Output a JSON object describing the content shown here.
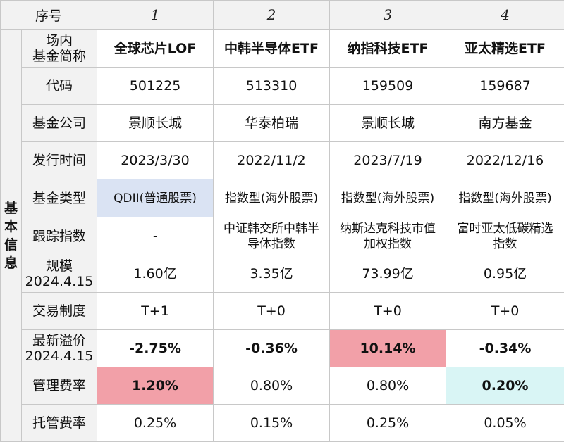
{
  "header": {
    "index_label": "序号",
    "indices": [
      "1",
      "2",
      "3",
      "4"
    ]
  },
  "section": {
    "chars": [
      "基",
      "本",
      "信",
      "息"
    ]
  },
  "rows": {
    "name": {
      "label_lines": [
        "场内",
        "基金简称"
      ],
      "values": [
        "全球芯片LOF",
        "中韩半导体ETF",
        "纳指科技ETF",
        "亚太精选ETF"
      ]
    },
    "code": {
      "label": "代码",
      "values": [
        "501225",
        "513310",
        "159509",
        "159687"
      ]
    },
    "company": {
      "label": "基金公司",
      "values": [
        "景顺长城",
        "华泰柏瑞",
        "景顺长城",
        "南方基金"
      ]
    },
    "issue_date": {
      "label": "发行时间",
      "values": [
        "2023/3/30",
        "2022/11/2",
        "2023/7/19",
        "2022/12/16"
      ]
    },
    "fund_type": {
      "label": "基金类型",
      "values": [
        "QDII(普通股票)",
        "指数型(海外股票)",
        "指数型(海外股票)",
        "指数型(海外股票)"
      ]
    },
    "tracking_index": {
      "label": "跟踪指数",
      "values": [
        [
          "-"
        ],
        [
          "中证韩交所中韩半",
          "导体指数"
        ],
        [
          "纳斯达克科技市值",
          "加权指数"
        ],
        [
          "富时亚太低碳精选",
          "指数"
        ]
      ]
    },
    "size": {
      "label_lines": [
        "规模",
        "2024.4.15"
      ],
      "values": [
        "1.60亿",
        "3.35亿",
        "73.99亿",
        "0.95亿"
      ]
    },
    "trading": {
      "label": "交易制度",
      "values": [
        "T+1",
        "T+0",
        "T+0",
        "T+0"
      ]
    },
    "premium": {
      "label_lines": [
        "最新溢价",
        "2024.4.15"
      ],
      "values": [
        "-2.75%",
        "-0.36%",
        "10.14%",
        "-0.34%"
      ]
    },
    "mgmt_fee": {
      "label": "管理费率",
      "values": [
        "1.20%",
        "0.80%",
        "0.80%",
        "0.20%"
      ]
    },
    "custody_fee": {
      "label": "托管费率",
      "values": [
        "0.25%",
        "0.15%",
        "0.25%",
        "0.05%"
      ]
    }
  },
  "colors": {
    "header_bg": "#f2f2f2",
    "highlight_blue": "#dae3f3",
    "highlight_red": "#f2a0a8",
    "highlight_cyan": "#d9f5f5",
    "border": "#c8c8c8"
  }
}
